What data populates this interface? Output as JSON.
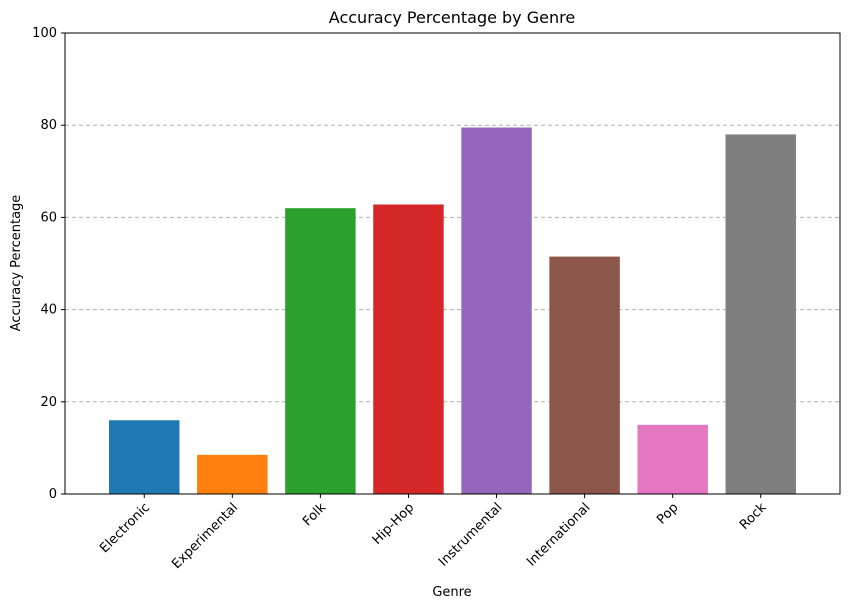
{
  "chart_data": {
    "type": "bar",
    "title": "Accuracy Percentage by Genre",
    "xlabel": "Genre",
    "ylabel": "Accuracy Percentage",
    "categories": [
      "Electronic",
      "Experimental",
      "Folk",
      "Hip-Hop",
      "Instrumental",
      "International",
      "Pop",
      "Rock"
    ],
    "values": [
      16.0,
      8.5,
      62.0,
      62.8,
      79.5,
      51.5,
      15.0,
      78.0
    ],
    "colors": [
      "#1f77b4",
      "#ff7f0e",
      "#2ca02c",
      "#d62728",
      "#9467bd",
      "#8c564b",
      "#e377c2",
      "#7f7f7f"
    ],
    "ylim": [
      0,
      100
    ],
    "yticks": [
      "0",
      "20",
      "40",
      "60",
      "80",
      "100"
    ],
    "grid": "y-dashed",
    "legend": "none"
  }
}
